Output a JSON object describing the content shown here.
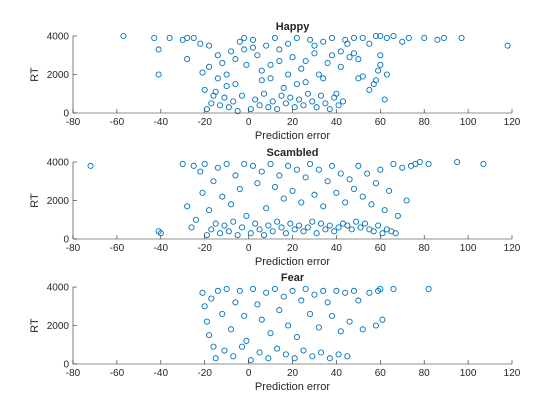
{
  "chart_data": [
    {
      "type": "scatter",
      "title": "Happy",
      "xlabel": "Prediction error",
      "ylabel": "RT",
      "xlim": [
        -80,
        120
      ],
      "ylim": [
        0,
        4000
      ],
      "xticks": [
        "-80",
        "-60",
        "-40",
        "-20",
        "0",
        "20",
        "40",
        "60",
        "80",
        "100",
        "120"
      ],
      "yticks": [
        "0",
        "2000",
        "4000"
      ],
      "grid": false,
      "marker_color": "#0072BD",
      "series": [
        {
          "x": [
            -57,
            -43,
            -41,
            -41,
            -36,
            -30,
            -28,
            -28,
            -25,
            -22,
            -21,
            -20,
            -18,
            -16,
            -14,
            -12,
            -10,
            -8,
            -6,
            -4,
            -2,
            -1,
            2,
            4,
            6,
            8,
            10,
            12,
            14,
            16,
            18,
            20,
            22,
            24,
            26,
            28,
            30,
            32,
            34,
            36,
            38,
            40,
            42,
            44,
            46,
            48,
            50,
            52,
            55,
            57,
            58,
            59,
            60,
            60,
            62,
            63,
            66,
            70,
            73,
            80,
            86,
            89,
            97,
            118,
            -19,
            -17,
            -15,
            -13,
            -11,
            -9,
            -7,
            -5,
            -3,
            1,
            3,
            5,
            7,
            9,
            11,
            13,
            15,
            17,
            19,
            21,
            23,
            25,
            27,
            29,
            31,
            33,
            35,
            37,
            39,
            41,
            43,
            -18,
            -14,
            -10,
            -6,
            -2,
            2,
            6,
            10,
            14,
            18,
            22,
            26,
            30,
            34,
            38,
            42,
            45,
            48,
            50,
            52,
            55,
            58,
            60,
            63
          ],
          "y": [
            4000,
            3900,
            3300,
            2000,
            3900,
            3800,
            3900,
            2800,
            3900,
            3600,
            2100,
            1200,
            3500,
            900,
            3000,
            2600,
            2000,
            3200,
            1500,
            3700,
            3900,
            2500,
            3800,
            3000,
            2200,
            3500,
            1800,
            3900,
            2700,
            1300,
            3600,
            2900,
            3900,
            2300,
            1600,
            3800,
            3100,
            2000,
            3700,
            2600,
            3900,
            1000,
            3200,
            3800,
            2900,
            3900,
            1800,
            3900,
            3600,
            1500,
            4000,
            2200,
            4000,
            3000,
            700,
            3900,
            4000,
            3700,
            3900,
            3900,
            3800,
            3900,
            3900,
            3500,
            200,
            500,
            1100,
            400,
            800,
            300,
            600,
            100,
            900,
            200,
            700,
            400,
            1000,
            300,
            600,
            200,
            900,
            500,
            800,
            300,
            700,
            400,
            1000,
            600,
            300,
            900,
            500,
            200,
            800,
            400,
            600,
            2400,
            1800,
            1400,
            2800,
            3300,
            3400,
            1700,
            2500,
            3300,
            2000,
            1500,
            2700,
            3500,
            1800,
            3000,
            2400,
            3600,
            3100,
            2800,
            1900,
            1200,
            1700,
            2500,
            2000
          ]
        }
      ]
    },
    {
      "type": "scatter",
      "title": "Scambled",
      "xlabel": "Prediction error",
      "ylabel": "RT",
      "xlim": [
        -80,
        120
      ],
      "ylim": [
        0,
        4000
      ],
      "xticks": [
        "-80",
        "-60",
        "-40",
        "-20",
        "0",
        "20",
        "40",
        "60",
        "80",
        "100",
        "120"
      ],
      "yticks": [
        "0",
        "2000",
        "4000"
      ],
      "grid": false,
      "marker_color": "#0072BD",
      "series": [
        {
          "x": [
            -72,
            -41,
            -40,
            -30,
            -28,
            -26,
            -25,
            -24,
            -22,
            -21,
            -20,
            -18,
            -16,
            -14,
            -12,
            -10,
            -8,
            -6,
            -4,
            -2,
            -1,
            2,
            4,
            6,
            8,
            10,
            12,
            14,
            16,
            18,
            20,
            22,
            24,
            26,
            28,
            30,
            32,
            34,
            36,
            38,
            40,
            42,
            44,
            46,
            48,
            50,
            52,
            54,
            56,
            58,
            60,
            62,
            64,
            66,
            68,
            70,
            72,
            74,
            76,
            78,
            82,
            95,
            107,
            -19,
            -17,
            -15,
            -13,
            -11,
            -9,
            -7,
            -5,
            -3,
            1,
            3,
            5,
            7,
            9,
            11,
            13,
            15,
            17,
            19,
            21,
            23,
            25,
            27,
            29,
            31,
            33,
            35,
            37,
            39,
            41,
            43,
            45,
            47,
            49,
            51,
            53,
            55,
            57,
            59,
            61,
            63,
            65,
            67
          ],
          "y": [
            3800,
            400,
            300,
            3900,
            1700,
            600,
            3800,
            1000,
            3500,
            2400,
            3900,
            1500,
            3000,
            3700,
            2200,
            3900,
            1800,
            3300,
            2600,
            3900,
            1200,
            3800,
            2900,
            3500,
            1600,
            3900,
            2700,
            3300,
            2100,
            3800,
            2500,
            3600,
            1900,
            3200,
            3900,
            2300,
            3600,
            1700,
            3000,
            3800,
            2400,
            3400,
            1900,
            3100,
            2600,
            3800,
            2200,
            3400,
            1800,
            2900,
            3600,
            1500,
            2500,
            3900,
            1200,
            3700,
            2000,
            3800,
            3900,
            4000,
            3900,
            4000,
            3900,
            200,
            500,
            800,
            300,
            700,
            400,
            900,
            200,
            600,
            300,
            800,
            500,
            200,
            700,
            400,
            900,
            600,
            300,
            800,
            500,
            700,
            400,
            600,
            900,
            300,
            800,
            500,
            700,
            400,
            600,
            800,
            700,
            500,
            900,
            600,
            800,
            500,
            400,
            700,
            300,
            500,
            400,
            300
          ]
        }
      ]
    },
    {
      "type": "scatter",
      "title": "Fear",
      "xlabel": "Prediction error",
      "ylabel": "RT",
      "xlim": [
        -80,
        120
      ],
      "ylim": [
        0,
        4000
      ],
      "xticks": [
        "-80",
        "-60",
        "-40",
        "-20",
        "0",
        "20",
        "40",
        "60",
        "80",
        "100",
        "120"
      ],
      "yticks": [
        "0",
        "2000",
        "4000"
      ],
      "grid": false,
      "marker_color": "#0072BD",
      "series": [
        {
          "x": [
            -21,
            -20,
            -19,
            -18,
            -17,
            -16,
            -14,
            -12,
            -10,
            -8,
            -6,
            -4,
            -2,
            -1,
            2,
            4,
            6,
            8,
            10,
            12,
            14,
            16,
            18,
            20,
            22,
            24,
            26,
            28,
            30,
            32,
            34,
            36,
            38,
            40,
            42,
            44,
            46,
            48,
            50,
            52,
            55,
            58,
            59,
            60,
            61,
            66,
            82,
            -15,
            -11,
            -7,
            -3,
            1,
            5,
            9,
            13,
            17,
            21,
            25,
            29,
            33,
            37,
            41,
            45
          ],
          "y": [
            3700,
            3000,
            2200,
            1500,
            3400,
            900,
            3800,
            2600,
            3900,
            1800,
            3200,
            3800,
            2500,
            1200,
            3900,
            3100,
            2300,
            3700,
            1600,
            3900,
            2800,
            3500,
            2000,
            3800,
            1400,
            3300,
            3900,
            2600,
            3600,
            1900,
            3800,
            3200,
            2500,
            3800,
            1700,
            3700,
            2200,
            3800,
            3300,
            1800,
            3700,
            2000,
            3800,
            3900,
            2300,
            3900,
            3900,
            300,
            700,
            400,
            900,
            200,
            600,
            300,
            800,
            500,
            300,
            700,
            400,
            600,
            300,
            500,
            400
          ]
        }
      ]
    }
  ]
}
